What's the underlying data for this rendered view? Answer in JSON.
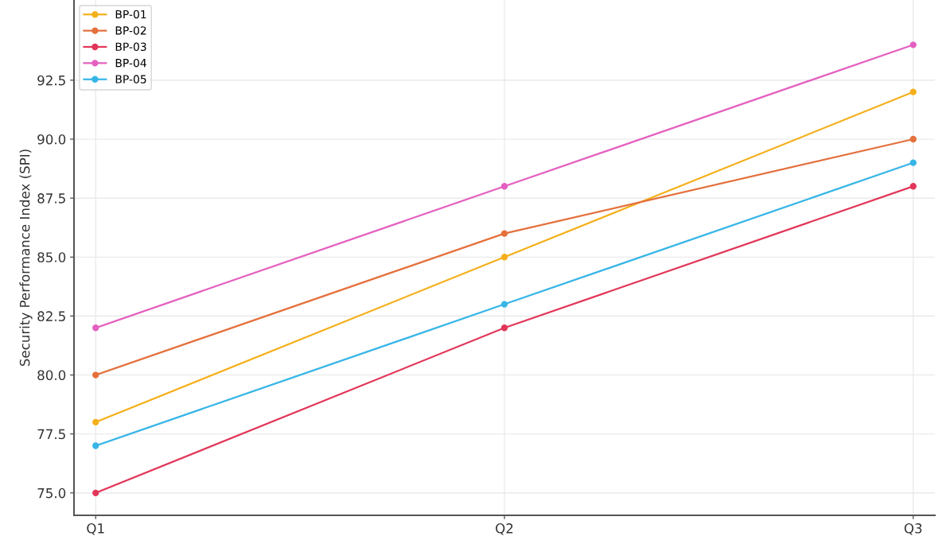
{
  "chart_data": {
    "type": "line",
    "ylabel": "Security Performance Index (SPI)",
    "categories": [
      "Q1",
      "Q2",
      "Q3"
    ],
    "series": [
      {
        "name": "BP-01",
        "color": "#f4b01c",
        "values": [
          78,
          85,
          92
        ]
      },
      {
        "name": "BP-02",
        "color": "#e4703c",
        "values": [
          80,
          86,
          90
        ]
      },
      {
        "name": "BP-03",
        "color": "#e2375a",
        "values": [
          75,
          82,
          88
        ]
      },
      {
        "name": "BP-04",
        "color": "#e460c0",
        "values": [
          82,
          88,
          94
        ]
      },
      {
        "name": "BP-05",
        "color": "#37b5e6",
        "values": [
          77,
          83,
          89
        ]
      }
    ],
    "ylim": [
      74.05,
      95.9
    ],
    "yticks": [
      {
        "value": 75,
        "label": "75.0"
      },
      {
        "value": 77.5,
        "label": "77.5"
      },
      {
        "value": 80,
        "label": "80.0"
      },
      {
        "value": 82.5,
        "label": "82.5"
      },
      {
        "value": 85,
        "label": "85.0"
      },
      {
        "value": 87.5,
        "label": "87.5"
      },
      {
        "value": 90,
        "label": "90.0"
      },
      {
        "value": 92.5,
        "label": "92.5"
      }
    ],
    "grid": true,
    "legend": "top left",
    "marker": "circle",
    "line_style": "solid"
  }
}
